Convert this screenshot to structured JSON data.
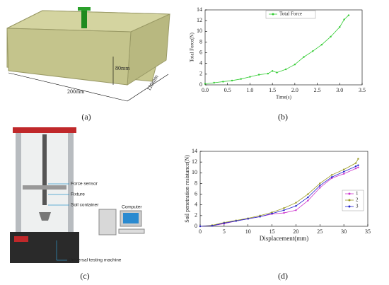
{
  "panel_a": {
    "width_label": "200mm",
    "depth_label": "120mm",
    "height_label": "80mm",
    "caption": "(a)"
  },
  "panel_b": {
    "caption": "(b)"
  },
  "panel_c": {
    "labels": [
      "Force sensor",
      "Fixture",
      "Soil container",
      "Computer",
      "Universal testing machine"
    ],
    "caption": "(c)"
  },
  "panel_d": {
    "caption": "(d)"
  },
  "chart_data": [
    {
      "type": "line",
      "xlabel": "Time(s)",
      "ylabel": "Total Force(N)",
      "legend": "upper left",
      "xlim": [
        0,
        3.5
      ],
      "ylim": [
        0,
        14
      ],
      "xticks": [
        {
          "value": 0,
          "label": "0.0"
        },
        0.5,
        {
          "value": 1,
          "label": "1.0"
        },
        1.5,
        {
          "value": 2,
          "label": "2.0"
        },
        2.5,
        {
          "value": 3,
          "label": "3.0"
        },
        3.5
      ],
      "yticks": [
        0,
        2,
        4,
        6,
        8,
        10,
        12,
        14
      ],
      "x": [
        0,
        0.2,
        0.4,
        0.6,
        0.8,
        1.0,
        1.2,
        1.4,
        1.5,
        1.6,
        1.8,
        2.0,
        2.2,
        2.4,
        2.6,
        2.8,
        3.0,
        3.1,
        3.2
      ],
      "series": [
        {
          "name": "Total Force",
          "color": "#33cc33",
          "values": [
            0.2,
            0.4,
            0.6,
            0.8,
            1.1,
            1.5,
            1.9,
            2.1,
            2.6,
            2.3,
            2.9,
            3.8,
            5.2,
            6.3,
            7.5,
            9.0,
            10.8,
            12.2,
            13.0
          ]
        }
      ]
    },
    {
      "type": "line",
      "xlabel": "Displacement(mm)",
      "ylabel": "Soil penetration resistance(N)",
      "legend": "lower right",
      "xlim": [
        0,
        35
      ],
      "ylim": [
        0,
        14
      ],
      "xticks": [
        0,
        5,
        10,
        15,
        20,
        25,
        30,
        35
      ],
      "yticks": [
        0,
        2,
        4,
        6,
        8,
        10,
        12,
        14
      ],
      "x": [
        0,
        2.5,
        5,
        7.5,
        10,
        12.5,
        15,
        17.5,
        20,
        22.5,
        25,
        27.5,
        30,
        32.5,
        33
      ],
      "series": [
        {
          "name": "1",
          "color": "#cc33cc",
          "values": [
            0,
            0.1,
            0.5,
            1.0,
            1.4,
            1.8,
            2.3,
            2.5,
            3.0,
            4.8,
            7.2,
            9.0,
            9.8,
            10.8,
            11.0
          ]
        },
        {
          "name": "2",
          "color": "#999922",
          "values": [
            0,
            0.2,
            0.7,
            1.1,
            1.5,
            2.0,
            2.6,
            3.4,
            4.4,
            6.0,
            8.0,
            9.6,
            10.6,
            11.8,
            12.6
          ]
        },
        {
          "name": "3",
          "color": "#2222cc",
          "values": [
            0,
            0.1,
            0.6,
            1.0,
            1.4,
            1.8,
            2.4,
            3.0,
            3.8,
            5.4,
            7.6,
            9.2,
            10.2,
            11.2,
            11.4
          ]
        }
      ]
    }
  ]
}
